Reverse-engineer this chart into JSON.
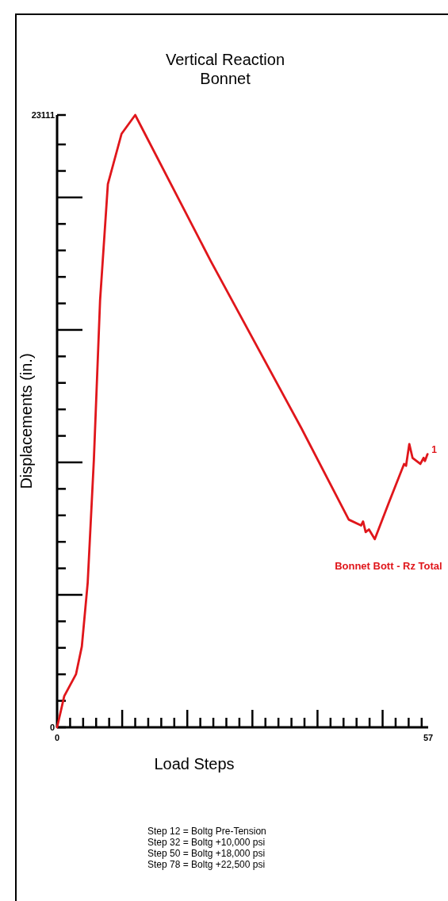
{
  "chart_data": {
    "type": "line",
    "title": "Vertical Reaction",
    "subtitle": "Bonnet",
    "xlabel": "Load Steps",
    "ylabel": "Displacements (in.)",
    "xlim": [
      0,
      57
    ],
    "ylim": [
      0,
      23111
    ],
    "xticks": [
      0,
      {
        "value": 2,
        "label": null
      },
      {
        "value": 4,
        "label": null
      },
      {
        "value": 6,
        "label": null
      },
      {
        "value": 8,
        "label": null
      },
      {
        "value": 10,
        "label": null
      },
      {
        "value": 12,
        "label": null
      },
      {
        "value": 14,
        "label": null
      },
      {
        "value": 16,
        "label": null
      },
      {
        "value": 18,
        "label": null
      },
      {
        "value": 20,
        "label": null
      },
      {
        "value": 22,
        "label": null
      },
      {
        "value": 24,
        "label": null
      },
      {
        "value": 26,
        "label": null
      },
      {
        "value": 28,
        "label": null
      },
      {
        "value": 30,
        "label": null
      },
      {
        "value": 32,
        "label": null
      },
      {
        "value": 34,
        "label": null
      },
      {
        "value": 36,
        "label": null
      },
      {
        "value": 38,
        "label": null
      },
      {
        "value": 40,
        "label": null
      },
      {
        "value": 42,
        "label": null
      },
      {
        "value": 44,
        "label": null
      },
      {
        "value": 46,
        "label": null
      },
      {
        "value": 48,
        "label": null
      },
      {
        "value": 50,
        "label": null
      },
      {
        "value": 52,
        "label": null
      },
      {
        "value": 54,
        "label": null
      },
      {
        "value": 56,
        "label": null
      },
      57
    ],
    "yticks": [
      0,
      {
        "value": 1000,
        "label": null
      },
      {
        "value": 2000,
        "label": null
      },
      {
        "value": 3000,
        "label": null
      },
      {
        "value": 4000,
        "label": null
      },
      {
        "value": 5000,
        "label": null
      },
      {
        "value": 6000,
        "label": null
      },
      {
        "value": 7000,
        "label": null
      },
      {
        "value": 8000,
        "label": null
      },
      {
        "value": 9000,
        "label": null
      },
      {
        "value": 10000,
        "label": null
      },
      {
        "value": 11000,
        "label": null
      },
      {
        "value": 12000,
        "label": null
      },
      {
        "value": 13000,
        "label": null
      },
      {
        "value": 14000,
        "label": null
      },
      {
        "value": 15000,
        "label": null
      },
      {
        "value": 16000,
        "label": null
      },
      {
        "value": 17000,
        "label": null
      },
      {
        "value": 18000,
        "label": null
      },
      {
        "value": 19000,
        "label": null
      },
      {
        "value": 20000,
        "label": null
      },
      {
        "value": 21000,
        "label": null
      },
      {
        "value": 22000,
        "label": null
      },
      23111
    ],
    "grid": false,
    "marker": "none",
    "line_style": "solid",
    "series": [
      {
        "name": "Bonnet Bott - Rz Total",
        "color": "#e0161b",
        "x": [
          0,
          1.1,
          2.9,
          3.8,
          4.7,
          5.65,
          6.6,
          7.8,
          9.9,
          12,
          23.6,
          37.5,
          44.8,
          46.7,
          47.0,
          47.4,
          47.9,
          48.8,
          50.9,
          53.3,
          53.6,
          54.1,
          54.6,
          55.8,
          56.3,
          56.5,
          56.9
        ],
        "values": [
          0,
          1180,
          2000,
          3050,
          5450,
          10100,
          16100,
          20500,
          22400,
          23111,
          17600,
          11300,
          7840,
          7620,
          7770,
          7370,
          7470,
          7100,
          8440,
          9940,
          9870,
          10690,
          10170,
          9940,
          10170,
          10050,
          10310
        ]
      }
    ],
    "annotations": [
      {
        "text": "1",
        "x": 56.9,
        "y": 10310
      },
      "Step 12 = Boltg Pre-Tension",
      "Step 32 = Boltg +10,000 psi",
      "Step 50 = Boltg +18,000 psi",
      "Step 78 = Boltg +22,500 psi"
    ]
  }
}
